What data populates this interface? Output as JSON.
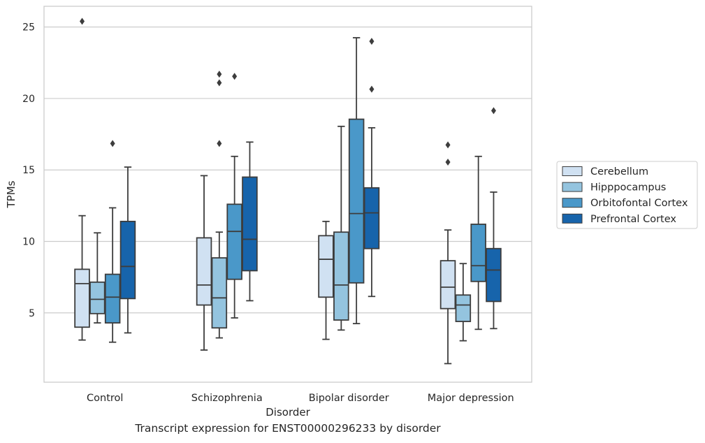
{
  "caption": "Transcript expression for ENST00000296233 by disorder",
  "chart_data": {
    "type": "boxplot",
    "xlabel": "Disorder",
    "ylabel": "TPMs",
    "categories": [
      "Control",
      "Schizophrenia",
      "Bipolar disorder",
      "Major depression"
    ],
    "ylim": [
      0.15,
      26.45
    ],
    "yticks": [
      5,
      10,
      15,
      20,
      25
    ],
    "grid": "horizontal",
    "legend_position": "right",
    "series": [
      {
        "name": "Cerebellum",
        "color": "#d0e1f2",
        "boxes": [
          {
            "whislo": 3.1,
            "q1": 4.0,
            "med": 7.05,
            "q3": 8.05,
            "whishi": 11.8,
            "fliers": [
              25.4
            ]
          },
          {
            "whislo": 2.4,
            "q1": 5.55,
            "med": 6.95,
            "q3": 10.25,
            "whishi": 14.6,
            "fliers": []
          },
          {
            "whislo": 3.15,
            "q1": 6.1,
            "med": 8.75,
            "q3": 10.4,
            "whishi": 11.4,
            "fliers": []
          },
          {
            "whislo": 1.45,
            "q1": 5.3,
            "med": 6.8,
            "q3": 8.65,
            "whishi": 10.8,
            "fliers": [
              16.75,
              15.55
            ]
          }
        ]
      },
      {
        "name": "Hipppocampus",
        "color": "#94c4df",
        "boxes": [
          {
            "whislo": 4.3,
            "q1": 4.95,
            "med": 5.95,
            "q3": 7.15,
            "whishi": 10.6,
            "fliers": []
          },
          {
            "whislo": 3.25,
            "q1": 3.95,
            "med": 6.05,
            "q3": 8.85,
            "whishi": 10.65,
            "fliers": [
              21.7,
              21.1,
              16.85
            ]
          },
          {
            "whislo": 3.8,
            "q1": 4.5,
            "med": 6.95,
            "q3": 10.65,
            "whishi": 18.05,
            "fliers": []
          },
          {
            "whislo": 3.05,
            "q1": 4.4,
            "med": 5.55,
            "q3": 6.25,
            "whishi": 8.45,
            "fliers": []
          }
        ]
      },
      {
        "name": "Orbitofontal Cortex",
        "color": "#4a98c9",
        "boxes": [
          {
            "whislo": 2.95,
            "q1": 4.3,
            "med": 6.1,
            "q3": 7.7,
            "whishi": 12.35,
            "fliers": [
              16.85
            ]
          },
          {
            "whislo": 4.65,
            "q1": 7.35,
            "med": 10.7,
            "q3": 12.6,
            "whishi": 15.95,
            "fliers": [
              21.55
            ]
          },
          {
            "whislo": 4.25,
            "q1": 7.1,
            "med": 11.95,
            "q3": 18.55,
            "whishi": 24.25,
            "fliers": []
          },
          {
            "whislo": 3.85,
            "q1": 7.2,
            "med": 8.3,
            "q3": 11.2,
            "whishi": 15.95,
            "fliers": []
          }
        ]
      },
      {
        "name": "Prefrontal Cortex",
        "color": "#1764ab",
        "boxes": [
          {
            "whislo": 3.6,
            "q1": 6.0,
            "med": 8.25,
            "q3": 11.4,
            "whishi": 15.2,
            "fliers": []
          },
          {
            "whislo": 5.85,
            "q1": 7.95,
            "med": 10.15,
            "q3": 14.5,
            "whishi": 16.95,
            "fliers": []
          },
          {
            "whislo": 6.15,
            "q1": 9.5,
            "med": 12.0,
            "q3": 13.75,
            "whishi": 17.95,
            "fliers": [
              24.0,
              20.65
            ]
          },
          {
            "whislo": 3.9,
            "q1": 5.8,
            "med": 8.0,
            "q3": 9.5,
            "whishi": 13.45,
            "fliers": [
              19.15
            ]
          }
        ]
      }
    ]
  }
}
